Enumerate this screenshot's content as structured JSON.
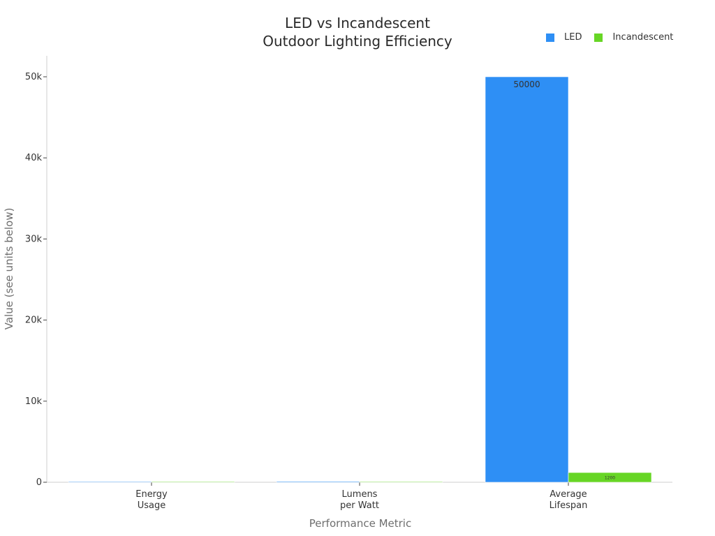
{
  "colors": {
    "led": "#2e8ff5",
    "incandescent": "#67d625"
  },
  "chart_data": {
    "type": "bar",
    "title_lines": [
      "LED vs Incandescent",
      "Outdoor Lighting Efficiency"
    ],
    "xlabel": "Performance Metric",
    "ylabel": "Value (see units below)",
    "categories": [
      [
        "Energy",
        "Usage"
      ],
      [
        "Lumens",
        "per Watt"
      ],
      [
        "Average",
        "Lifespan"
      ]
    ],
    "series": [
      {
        "name": "LED",
        "values": [
          9,
          100,
          50000
        ],
        "data_labels": [
          null,
          null,
          "50000"
        ]
      },
      {
        "name": "Incandescent",
        "values": [
          60,
          15,
          1200
        ],
        "data_labels": [
          null,
          null,
          "1200"
        ]
      }
    ],
    "ylim": [
      0,
      52500
    ],
    "yticks": [
      0,
      10000,
      20000,
      30000,
      40000,
      50000
    ],
    "ytick_labels": [
      "0",
      "10k",
      "20k",
      "30k",
      "40k",
      "50k"
    ],
    "grid": false,
    "legend": "top-right"
  }
}
